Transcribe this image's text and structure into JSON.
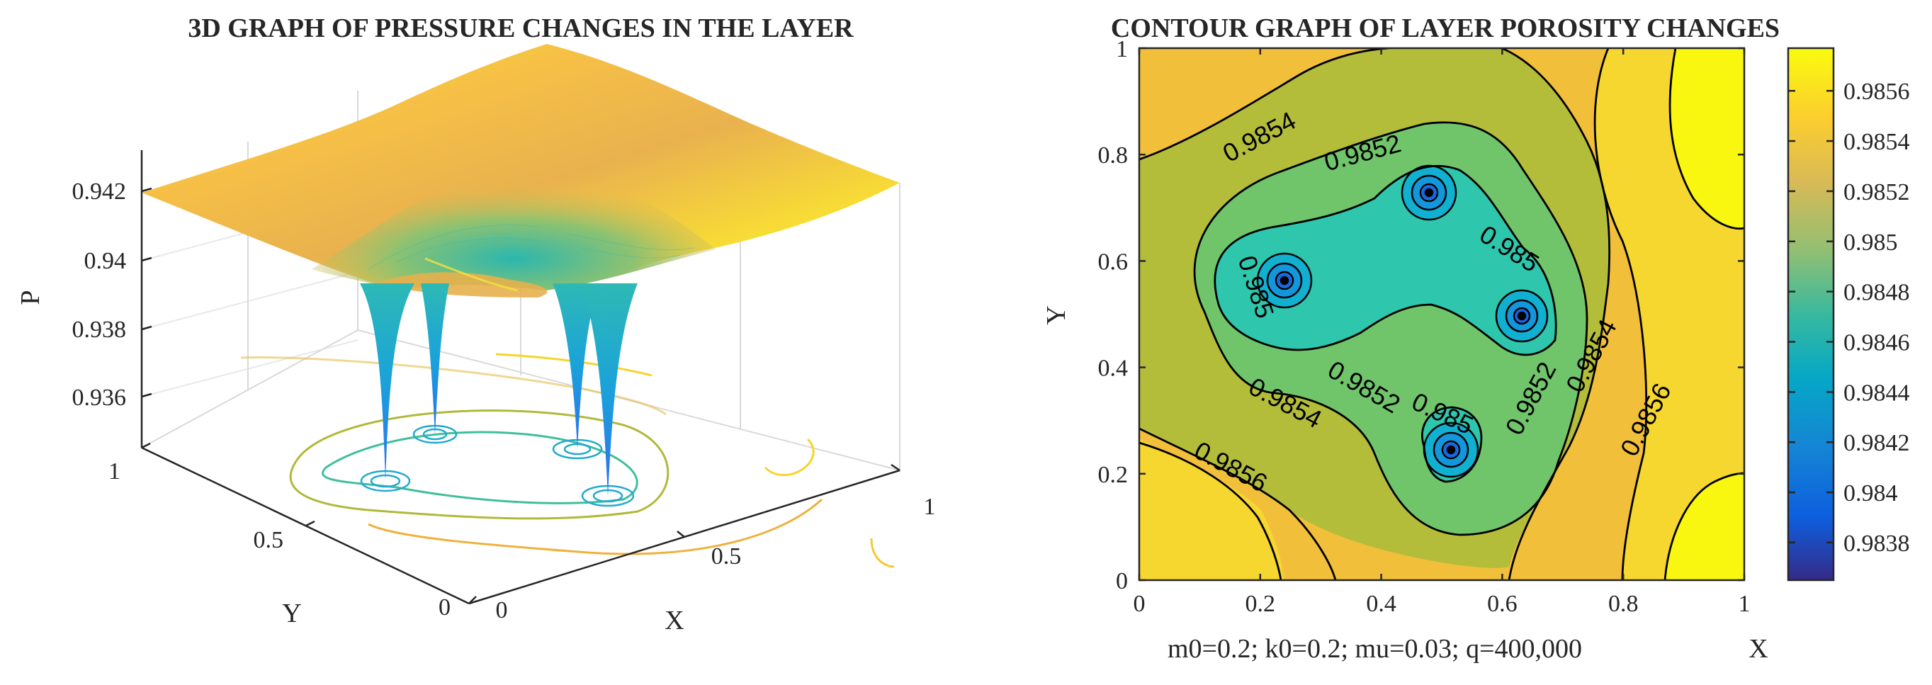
{
  "chart_data": [
    {
      "type": "surface3d",
      "title": "3D GRAPH OF PRESSURE CHANGES IN THE LAYER",
      "xlabel": "X",
      "ylabel": "Y",
      "zlabel": "P",
      "xlim": [
        0,
        1
      ],
      "ylim": [
        0,
        1
      ],
      "zlim": [
        0.9345,
        0.943
      ],
      "x_ticks": [
        "0",
        "0.5",
        "1"
      ],
      "y_ticks": [
        "0",
        "0.5",
        "1"
      ],
      "z_ticks": [
        "0.936",
        "0.938",
        "0.94",
        "0.942"
      ],
      "wells": [
        {
          "x": 0.24,
          "y": 0.56
        },
        {
          "x": 0.47,
          "y": 0.73
        },
        {
          "x": 0.63,
          "y": 0.5
        },
        {
          "x": 0.51,
          "y": 0.25
        }
      ],
      "surface_max": 0.943,
      "surface_min": 0.9345,
      "colormap": "parula",
      "base_contours": true,
      "grid": true
    },
    {
      "type": "contour",
      "title": "CONTOUR GRAPH OF LAYER POROSITY CHANGES",
      "xlabel": "X",
      "ylabel": "Y",
      "xlim": [
        0,
        1
      ],
      "ylim": [
        0,
        1
      ],
      "x_ticks": [
        "0",
        "0.2",
        "0.4",
        "0.6",
        "0.8",
        "1"
      ],
      "y_ticks": [
        "0",
        "0.2",
        "0.4",
        "0.6",
        "0.8",
        "1"
      ],
      "levels": [
        0.9838,
        0.984,
        0.9842,
        0.9844,
        0.9846,
        0.9848,
        0.985,
        0.9852,
        0.9854,
        0.9856
      ],
      "contour_labels": [
        {
          "text": "0.9854",
          "x": 0.2,
          "y": 0.83,
          "angle": -28
        },
        {
          "text": "0.9852",
          "x": 0.37,
          "y": 0.8,
          "angle": -15
        },
        {
          "text": "0.985",
          "x": 0.19,
          "y": 0.55,
          "angle": 72
        },
        {
          "text": "0.985",
          "x": 0.61,
          "y": 0.62,
          "angle": 32
        },
        {
          "text": "0.9852",
          "x": 0.37,
          "y": 0.36,
          "angle": 30
        },
        {
          "text": "0.9854",
          "x": 0.24,
          "y": 0.33,
          "angle": 28
        },
        {
          "text": "0.9856",
          "x": 0.15,
          "y": 0.21,
          "angle": 28
        },
        {
          "text": "0.985",
          "x": 0.5,
          "y": 0.31,
          "angle": 25
        },
        {
          "text": "0.9852",
          "x": 0.65,
          "y": 0.34,
          "angle": -62
        },
        {
          "text": "0.9854",
          "x": 0.75,
          "y": 0.42,
          "angle": -62
        },
        {
          "text": "0.9856",
          "x": 0.84,
          "y": 0.3,
          "angle": -62
        }
      ],
      "colorbar": {
        "ticks": [
          "0.9838",
          "0.984",
          "0.9842",
          "0.9844",
          "0.9846",
          "0.9848",
          "0.985",
          "0.9852",
          "0.9854",
          "0.9856"
        ],
        "min": 0.98365,
        "max": 0.98577
      },
      "annotation": "m0=0.2;  k0=0.2;  mu=0.03;  q=400,000",
      "colormap": "parula"
    }
  ]
}
